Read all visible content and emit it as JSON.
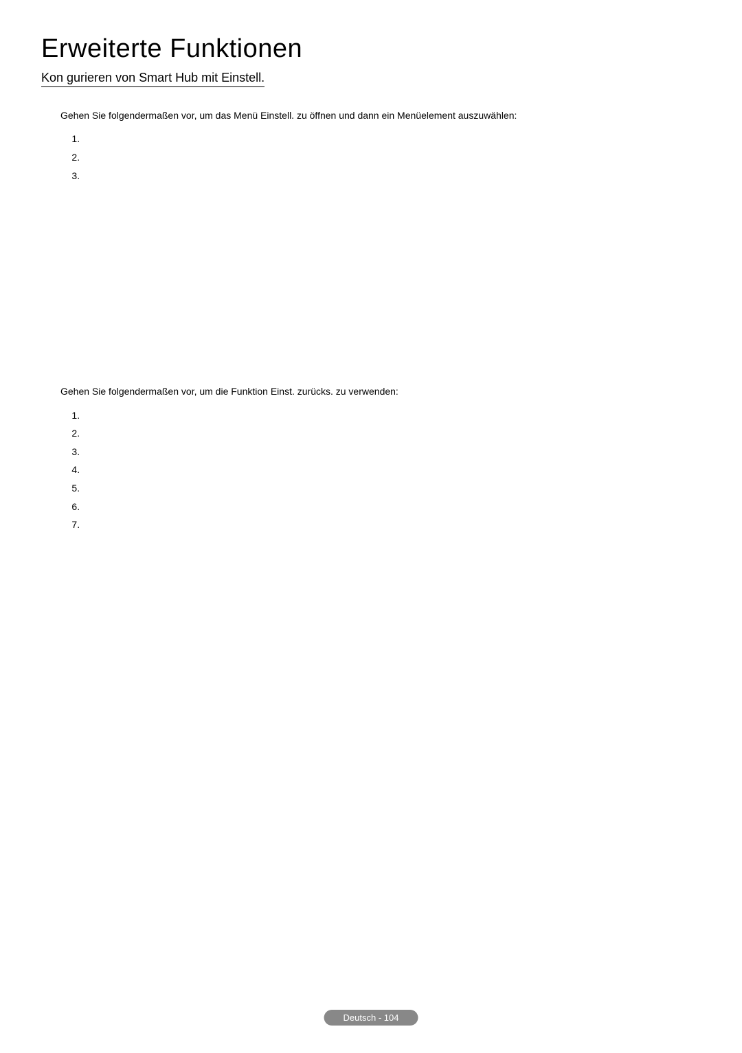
{
  "heading": "Erweiterte Funktionen",
  "subheading": "Kon gurieren von Smart Hub mit Einstell.",
  "paragraph1": "Gehen Sie folgendermaßen vor, um das Menü Einstell. zu öffnen und dann ein Menüelement auszuwählen:",
  "paragraph2": "Gehen Sie folgendermaßen vor, um die Funktion Einst. zurücks. zu verwenden:",
  "list1": [
    "",
    "",
    ""
  ],
  "list2": [
    "",
    "",
    "",
    "",
    "",
    "",
    ""
  ],
  "footer": "Deutsch - 104"
}
